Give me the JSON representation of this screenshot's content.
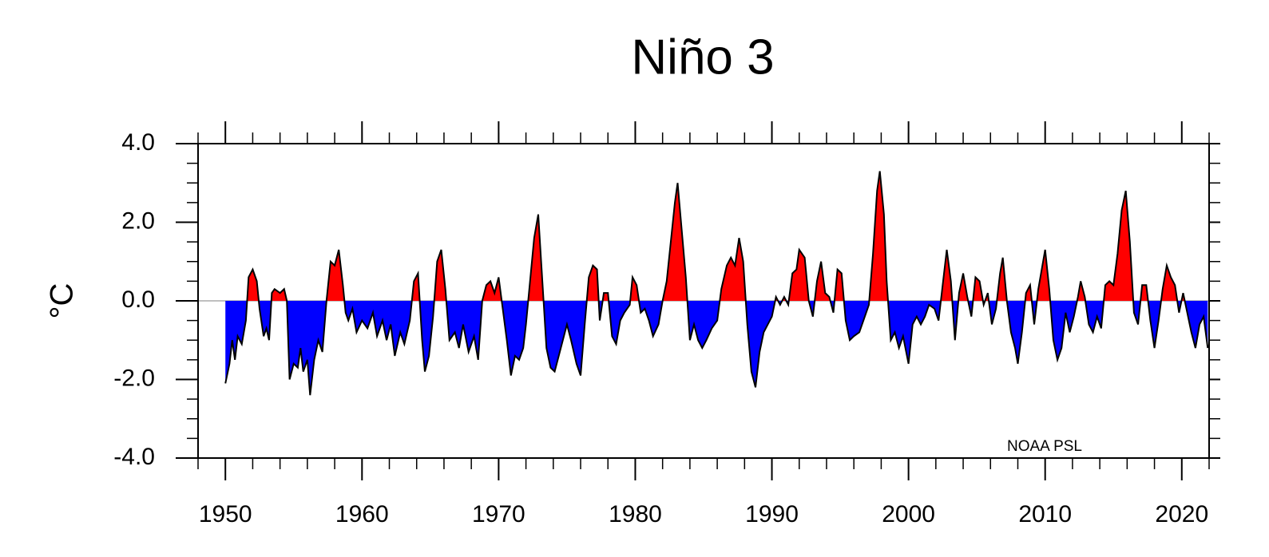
{
  "chart_data": {
    "type": "area",
    "title": "Niño 3",
    "y_label": "°C",
    "annotation": "NOAA PSL",
    "line_color": "#000000",
    "above_color": "#ff0000",
    "below_color": "#0000ff",
    "xlim": [
      1948,
      2022
    ],
    "xticks": [
      1950,
      1960,
      1970,
      1980,
      1990,
      2000,
      2010,
      2020
    ],
    "ylim": [
      -4,
      4
    ],
    "yticks": [
      {
        "value": -4,
        "label": "-4.0"
      },
      {
        "value": -2,
        "label": "-2.0"
      },
      {
        "value": 0,
        "label": "0.0"
      },
      {
        "value": 2,
        "label": "2.0"
      },
      {
        "value": 4,
        "label": "4.0"
      }
    ],
    "x": [
      1950.0,
      1950.3,
      1950.5,
      1950.7,
      1950.9,
      1951.2,
      1951.5,
      1951.7,
      1952.0,
      1952.3,
      1952.5,
      1952.8,
      1953.0,
      1953.2,
      1953.4,
      1953.6,
      1954.0,
      1954.3,
      1954.5,
      1954.7,
      1955.0,
      1955.3,
      1955.5,
      1955.7,
      1956.0,
      1956.2,
      1956.5,
      1956.8,
      1957.1,
      1957.4,
      1957.7,
      1958.0,
      1958.3,
      1958.6,
      1958.8,
      1959.0,
      1959.3,
      1959.6,
      1960.0,
      1960.4,
      1960.8,
      1961.1,
      1961.5,
      1961.8,
      1962.1,
      1962.4,
      1962.8,
      1963.1,
      1963.5,
      1963.8,
      1964.1,
      1964.4,
      1964.6,
      1964.9,
      1965.2,
      1965.5,
      1965.8,
      1966.1,
      1966.4,
      1966.8,
      1967.1,
      1967.4,
      1967.8,
      1968.2,
      1968.5,
      1968.8,
      1969.1,
      1969.4,
      1969.7,
      1970.0,
      1970.3,
      1970.6,
      1970.9,
      1971.2,
      1971.5,
      1971.8,
      1972.0,
      1972.3,
      1972.6,
      1972.9,
      1973.2,
      1973.5,
      1973.8,
      1974.1,
      1974.4,
      1974.7,
      1975.0,
      1975.3,
      1975.7,
      1976.0,
      1976.3,
      1976.6,
      1976.9,
      1977.2,
      1977.4,
      1977.7,
      1978.0,
      1978.3,
      1978.6,
      1978.9,
      1979.2,
      1979.6,
      1979.8,
      1980.1,
      1980.4,
      1980.7,
      1981.0,
      1981.3,
      1981.7,
      1982.0,
      1982.3,
      1982.6,
      1982.9,
      1983.1,
      1983.4,
      1983.7,
      1984.0,
      1984.3,
      1984.6,
      1984.9,
      1985.2,
      1985.6,
      1986.0,
      1986.3,
      1986.7,
      1987.0,
      1987.3,
      1987.6,
      1987.9,
      1988.2,
      1988.5,
      1988.8,
      1989.1,
      1989.4,
      1989.7,
      1990.0,
      1990.3,
      1990.6,
      1990.9,
      1991.2,
      1991.5,
      1991.8,
      1992.0,
      1992.4,
      1992.7,
      1993.0,
      1993.3,
      1993.6,
      1993.9,
      1994.2,
      1994.5,
      1994.8,
      1995.1,
      1995.4,
      1995.7,
      1996.0,
      1996.4,
      1996.8,
      1997.1,
      1997.4,
      1997.7,
      1997.9,
      1998.2,
      1998.4,
      1998.7,
      1999.0,
      1999.3,
      1999.6,
      2000.0,
      2000.3,
      2000.6,
      2000.9,
      2001.2,
      2001.5,
      2001.9,
      2002.2,
      2002.5,
      2002.8,
      2003.1,
      2003.4,
      2003.7,
      2004.0,
      2004.3,
      2004.6,
      2004.9,
      2005.2,
      2005.5,
      2005.8,
      2006.1,
      2006.4,
      2006.7,
      2006.9,
      2007.2,
      2007.5,
      2007.8,
      2008.0,
      2008.3,
      2008.6,
      2008.9,
      2009.2,
      2009.5,
      2009.8,
      2010.0,
      2010.3,
      2010.6,
      2010.9,
      2011.2,
      2011.5,
      2011.8,
      2012.1,
      2012.4,
      2012.6,
      2012.9,
      2013.2,
      2013.5,
      2013.8,
      2014.1,
      2014.4,
      2014.7,
      2015.0,
      2015.3,
      2015.6,
      2015.9,
      2016.2,
      2016.5,
      2016.8,
      2017.1,
      2017.4,
      2017.7,
      2018.0,
      2018.3,
      2018.6,
      2018.9,
      2019.2,
      2019.5,
      2019.8,
      2020.1,
      2020.4,
      2020.7,
      2021.0,
      2021.3,
      2021.6,
      2021.9
    ],
    "values": [
      -2.1,
      -1.6,
      -1.0,
      -1.5,
      -0.9,
      -1.1,
      -0.5,
      0.6,
      0.8,
      0.5,
      -0.2,
      -0.9,
      -0.7,
      -1.0,
      0.2,
      0.3,
      0.2,
      0.3,
      0.0,
      -2.0,
      -1.6,
      -1.7,
      -1.2,
      -1.8,
      -1.5,
      -2.4,
      -1.5,
      -1.0,
      -1.3,
      0.0,
      1.0,
      0.9,
      1.3,
      0.4,
      -0.3,
      -0.5,
      -0.2,
      -0.8,
      -0.5,
      -0.7,
      -0.3,
      -0.9,
      -0.5,
      -1.0,
      -0.6,
      -1.4,
      -0.8,
      -1.1,
      -0.5,
      0.5,
      0.7,
      -1.0,
      -1.8,
      -1.4,
      -0.4,
      1.0,
      1.3,
      0.3,
      -1.0,
      -0.8,
      -1.2,
      -0.6,
      -1.3,
      -0.9,
      -1.5,
      0.0,
      0.4,
      0.5,
      0.2,
      0.6,
      -0.2,
      -1.0,
      -1.9,
      -1.4,
      -1.5,
      -1.2,
      -0.6,
      0.5,
      1.6,
      2.2,
      0.5,
      -1.2,
      -1.7,
      -1.8,
      -1.4,
      -1.0,
      -0.6,
      -1.0,
      -1.6,
      -1.9,
      -0.6,
      0.6,
      0.9,
      0.8,
      -0.5,
      0.2,
      0.2,
      -0.9,
      -1.1,
      -0.5,
      -0.3,
      -0.1,
      0.6,
      0.4,
      -0.3,
      -0.2,
      -0.5,
      -0.9,
      -0.6,
      0.0,
      0.5,
      1.5,
      2.5,
      3.0,
      1.8,
      0.6,
      -1.0,
      -0.6,
      -1.0,
      -1.2,
      -1.0,
      -0.7,
      -0.5,
      0.3,
      0.9,
      1.1,
      0.9,
      1.6,
      1.0,
      -0.6,
      -1.8,
      -2.2,
      -1.3,
      -0.8,
      -0.6,
      -0.4,
      0.1,
      -0.1,
      0.1,
      -0.1,
      0.7,
      0.8,
      1.3,
      1.1,
      0.0,
      -0.4,
      0.5,
      1.0,
      0.2,
      0.1,
      -0.3,
      0.8,
      0.7,
      -0.5,
      -1.0,
      -0.9,
      -0.8,
      -0.4,
      -0.1,
      1.2,
      2.8,
      3.3,
      2.2,
      0.5,
      -1.0,
      -0.8,
      -1.2,
      -0.9,
      -1.6,
      -0.6,
      -0.4,
      -0.6,
      -0.4,
      -0.1,
      -0.2,
      -0.5,
      0.4,
      1.3,
      0.5,
      -1.0,
      0.2,
      0.7,
      0.1,
      -0.4,
      0.6,
      0.5,
      -0.1,
      0.2,
      -0.6,
      -0.2,
      0.7,
      1.1,
      0.0,
      -0.8,
      -1.2,
      -1.6,
      -0.8,
      0.2,
      0.4,
      -0.6,
      0.3,
      0.9,
      1.3,
      0.3,
      -1.0,
      -1.5,
      -1.2,
      -0.3,
      -0.8,
      -0.4,
      0.1,
      0.5,
      0.1,
      -0.6,
      -0.8,
      -0.4,
      -0.7,
      0.4,
      0.5,
      0.4,
      1.2,
      2.3,
      2.8,
      1.5,
      -0.3,
      -0.6,
      0.4,
      0.4,
      -0.5,
      -1.2,
      -0.5,
      0.3,
      0.9,
      0.6,
      0.4,
      -0.3,
      0.2,
      -0.3,
      -0.8,
      -1.2,
      -0.6,
      -0.4,
      -1.2
    ]
  }
}
